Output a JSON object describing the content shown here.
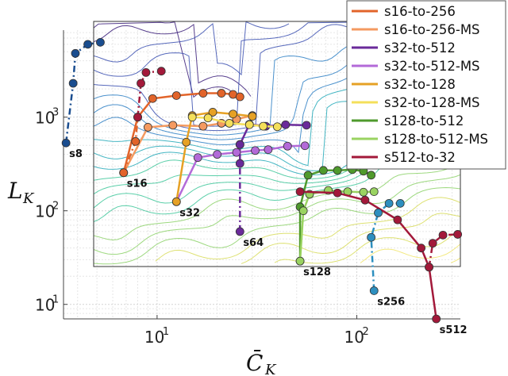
{
  "chart_data": {
    "type": "line",
    "xscale": "log",
    "yscale": "log",
    "xlim": [
      3.4,
      330
    ],
    "ylim": [
      7,
      8500
    ],
    "xlabel": "C̄",
    "xlabel_sub": "K",
    "ylabel": "L",
    "ylabel_sub": "K",
    "xticks": [
      {
        "value": 10,
        "base": "10",
        "exp": "1"
      },
      {
        "value": 100,
        "base": "10",
        "exp": "2"
      }
    ],
    "yticks": [
      {
        "value": 10,
        "base": "10",
        "exp": "1"
      },
      {
        "value": 100,
        "base": "10",
        "exp": "2"
      },
      {
        "value": 1000,
        "base": "10",
        "exp": "3"
      }
    ],
    "grid": true,
    "legend_position": "top-right",
    "background": "contour map",
    "series": [
      {
        "name": "s16-to-256",
        "color": "#e2642a",
        "style": "solid",
        "points": [
          [
            6.8,
            255
          ],
          [
            8,
            1000
          ],
          [
            9.5,
            1580
          ],
          [
            12.5,
            1700
          ],
          [
            17,
            1800
          ],
          [
            21,
            1800
          ],
          [
            24,
            1750
          ],
          [
            26,
            1650
          ]
        ]
      },
      {
        "name": "s16-to-256-MS",
        "color": "#f49a60",
        "style": "solid",
        "points": [
          [
            6.8,
            255
          ],
          [
            9,
            780
          ],
          [
            12,
            820
          ],
          [
            17,
            800
          ],
          [
            21,
            860
          ],
          [
            25,
            950
          ],
          [
            30,
            1040
          ]
        ]
      },
      {
        "name": "s32-to-512",
        "color": "#6a2a9a",
        "style": "solid",
        "points": [
          [
            26,
            510
          ],
          [
            29,
            840
          ],
          [
            35,
            800
          ],
          [
            44,
            830
          ],
          [
            56,
            820
          ]
        ]
      },
      {
        "name": "s32-to-512-MS",
        "color": "#b36ad8",
        "style": "solid",
        "points": [
          [
            12.5,
            125
          ],
          [
            16,
            370
          ],
          [
            20,
            400
          ],
          [
            25,
            420
          ],
          [
            31,
            440
          ],
          [
            36,
            450
          ],
          [
            45,
            490
          ],
          [
            55,
            495
          ]
        ]
      },
      {
        "name": "s32-to-128",
        "color": "#e6a125",
        "style": "solid",
        "points": [
          [
            12.5,
            125
          ],
          [
            14,
            540
          ],
          [
            15,
            1040
          ],
          [
            19,
            1130
          ],
          [
            24,
            1080
          ],
          [
            30,
            1020
          ]
        ]
      },
      {
        "name": "s32-to-128-MS",
        "color": "#f4df5a",
        "style": "solid",
        "points": [
          [
            15,
            1000
          ],
          [
            18,
            980
          ],
          [
            23,
            860
          ],
          [
            29,
            830
          ],
          [
            34,
            800
          ],
          [
            40,
            790
          ]
        ]
      },
      {
        "name": "s128-to-512",
        "color": "#4f9a2c",
        "style": "solid",
        "points": [
          [
            52,
            29
          ],
          [
            52,
            110
          ],
          [
            57,
            240
          ],
          [
            68,
            270
          ],
          [
            80,
            270
          ],
          [
            95,
            275
          ],
          [
            108,
            265
          ],
          [
            118,
            240
          ]
        ]
      },
      {
        "name": "s128-to-512-MS",
        "color": "#9ad361",
        "style": "solid",
        "points": [
          [
            52,
            29
          ],
          [
            54,
            100
          ],
          [
            58,
            150
          ],
          [
            72,
            165
          ],
          [
            90,
            160
          ],
          [
            108,
            158
          ],
          [
            122,
            160
          ]
        ]
      },
      {
        "name": "s512-to-32",
        "color": "#a3193a",
        "style": "solid",
        "points": [
          [
            250,
            7
          ],
          [
            230,
            25
          ],
          [
            210,
            40
          ],
          [
            160,
            80
          ],
          [
            110,
            130
          ],
          [
            80,
            155
          ],
          [
            52,
            160
          ]
        ]
      },
      {
        "name": "",
        "color": "#e2642a",
        "style": "dashdot",
        "points": [
          [
            6.8,
            255
          ],
          [
            7.8,
            550
          ],
          [
            8,
            1000
          ]
        ]
      },
      {
        "name": "",
        "color": "#a3193a",
        "style": "dashdot",
        "points": [
          [
            8,
            1000
          ],
          [
            8.3,
            2300
          ],
          [
            8.8,
            3000
          ],
          [
            10.5,
            3100
          ]
        ]
      },
      {
        "name": "",
        "color": "#1a4d8f",
        "style": "dashdot",
        "points": [
          [
            3.5,
            530
          ],
          [
            3.8,
            2300
          ],
          [
            3.9,
            4800
          ],
          [
            4.5,
            6000
          ],
          [
            5.2,
            6300
          ]
        ]
      },
      {
        "name": "",
        "color": "#6a2a9a",
        "style": "dashdot",
        "points": [
          [
            26,
            60
          ],
          [
            26,
            320
          ],
          [
            26,
            510
          ]
        ]
      },
      {
        "name": "",
        "color": "#2d8fbf",
        "style": "dashdot",
        "points": [
          [
            122,
            14
          ],
          [
            118,
            52
          ],
          [
            128,
            95
          ],
          [
            145,
            120
          ],
          [
            165,
            120
          ]
        ]
      },
      {
        "name": "",
        "color": "#a3193a",
        "style": "dashdot",
        "points": [
          [
            230,
            25
          ],
          [
            240,
            45
          ],
          [
            270,
            55
          ],
          [
            320,
            56
          ]
        ]
      }
    ],
    "run_labels": [
      {
        "text": "s8",
        "x": 3.5,
        "y": 530
      },
      {
        "text": "s16",
        "x": 6.8,
        "y": 255
      },
      {
        "text": "s32",
        "x": 12.5,
        "y": 125
      },
      {
        "text": "s64",
        "x": 26,
        "y": 60
      },
      {
        "text": "s128",
        "x": 52,
        "y": 29
      },
      {
        "text": "s256",
        "x": 122,
        "y": 14
      },
      {
        "text": "s512",
        "x": 250,
        "y": 7
      }
    ]
  },
  "contour_colormap": [
    "#3b1f7a",
    "#3a4fb0",
    "#2d7fc4",
    "#24a9b8",
    "#3ec79a",
    "#8dd26a",
    "#d8dc5a",
    "#f1e56a"
  ]
}
